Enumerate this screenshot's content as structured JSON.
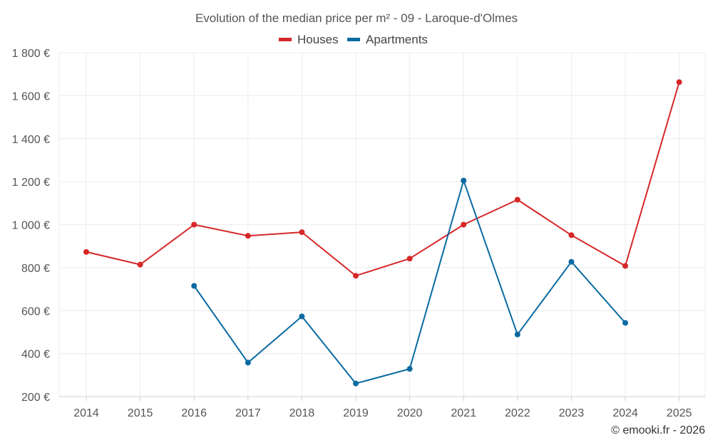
{
  "chart_data": {
    "type": "line",
    "title": "Evolution of the median price per m² - 09 - Laroque-d'Olmes",
    "x": [
      "2014",
      "2015",
      "2016",
      "2017",
      "2018",
      "2019",
      "2020",
      "2021",
      "2022",
      "2023",
      "2024",
      "2025"
    ],
    "ylim": [
      200,
      1800
    ],
    "yticks": [
      200,
      400,
      600,
      800,
      1000,
      1200,
      1400,
      1600,
      1800
    ],
    "ytick_labels": [
      "200 €",
      "400 €",
      "600 €",
      "800 €",
      "1 000 €",
      "1 200 €",
      "1 400 €",
      "1 600 €",
      "1 800 €"
    ],
    "grid": true,
    "legend_position": "top-center",
    "series": [
      {
        "name": "Houses",
        "color": "#d62728",
        "values": [
          873,
          814,
          1000,
          948,
          965,
          762,
          842,
          1000,
          1116,
          951,
          808,
          1663
        ]
      },
      {
        "name": "Apartments",
        "color": "#0a6aa1",
        "values": [
          null,
          null,
          715,
          358,
          573,
          261,
          329,
          1205,
          489,
          827,
          543,
          null
        ]
      }
    ],
    "xlabel": "",
    "ylabel": ""
  },
  "credit": "© emooki.fr - 2026"
}
